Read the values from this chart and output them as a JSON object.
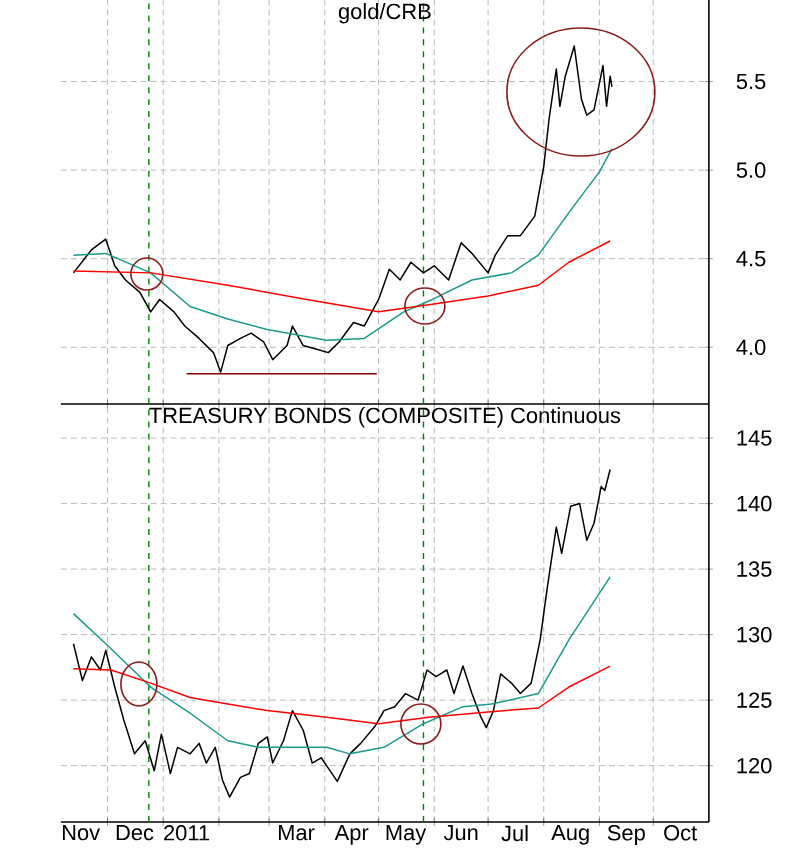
{
  "chart_data": [
    {
      "type": "line",
      "title": "gold/CRB",
      "xlim": [
        "2010-11-05",
        "2011-11-01"
      ],
      "ylim": [
        3.68,
        5.96
      ],
      "xticks": [
        {
          "value": "2010-12-01",
          "label": null
        },
        {
          "value": "2011-01-01",
          "label": null
        },
        {
          "value": "2011-02-01",
          "label": null
        },
        {
          "value": "2011-03-01",
          "label": null
        },
        {
          "value": "2011-04-01",
          "label": null
        },
        {
          "value": "2011-05-01",
          "label": null
        },
        {
          "value": "2011-06-01",
          "label": null
        },
        {
          "value": "2011-07-01",
          "label": null
        },
        {
          "value": "2011-08-01",
          "label": null
        },
        {
          "value": "2011-09-01",
          "label": null
        },
        {
          "value": "2011-10-01",
          "label": null
        }
      ],
      "yticks": [
        {
          "value": 4.0,
          "label": "4.0"
        },
        {
          "value": 4.5,
          "label": "4.5"
        },
        {
          "value": 5.0,
          "label": "5.0"
        },
        {
          "value": 5.5,
          "label": "5.5"
        }
      ],
      "tick_labels": "y",
      "grid": true,
      "marker": "none",
      "ref_lines": [
        {
          "axis": "x",
          "value": "2010-12-24",
          "color": "#008000",
          "line_style": "dashed"
        },
        {
          "axis": "x",
          "value": "2011-05-26",
          "color": "#008000",
          "line_style": "dashed"
        }
      ],
      "series": [
        {
          "color": "#000000",
          "x": [
            "2010-11-12",
            "2010-11-22",
            "2010-11-30",
            "2010-12-05",
            "2010-12-11",
            "2010-12-19",
            "2010-12-25",
            "2010-12-30",
            "2011-01-07",
            "2011-01-13",
            "2011-01-21",
            "2011-01-29",
            "2011-02-02",
            "2011-02-06",
            "2011-02-13",
            "2011-02-19",
            "2011-02-26",
            "2011-03-03",
            "2011-03-11",
            "2011-03-14",
            "2011-03-20",
            "2011-03-27",
            "2011-04-03",
            "2011-04-09",
            "2011-04-17",
            "2011-04-23",
            "2011-05-01",
            "2011-05-07",
            "2011-05-13",
            "2011-05-19",
            "2011-05-26",
            "2011-06-01",
            "2011-06-09",
            "2011-06-16",
            "2011-06-22",
            "2011-07-01",
            "2011-07-05",
            "2011-07-12",
            "2011-07-19",
            "2011-07-27",
            "2011-08-01",
            "2011-08-04",
            "2011-08-08",
            "2011-08-10",
            "2011-08-13",
            "2011-08-18",
            "2011-08-22",
            "2011-08-25",
            "2011-08-29",
            "2011-09-03",
            "2011-09-05",
            "2011-09-07",
            "2011-09-08"
          ],
          "values": [
            4.42,
            4.55,
            4.61,
            4.46,
            4.38,
            4.31,
            4.2,
            4.27,
            4.2,
            4.12,
            4.05,
            3.97,
            3.86,
            4.01,
            4.05,
            4.08,
            4.03,
            3.93,
            4.01,
            4.12,
            4.01,
            3.99,
            3.97,
            4.03,
            4.14,
            4.12,
            4.27,
            4.44,
            4.38,
            4.48,
            4.42,
            4.46,
            4.38,
            4.59,
            4.53,
            4.42,
            4.52,
            4.63,
            4.63,
            4.74,
            5.02,
            5.29,
            5.57,
            5.36,
            5.53,
            5.7,
            5.4,
            5.31,
            5.34,
            5.59,
            5.36,
            5.53,
            5.47
          ]
        },
        {
          "color": "#1a9a8a",
          "x": [
            "2010-11-12",
            "2010-11-30",
            "2010-12-25",
            "2011-01-16",
            "2011-02-06",
            "2011-02-28",
            "2011-04-02",
            "2011-04-23",
            "2011-05-15",
            "2011-05-31",
            "2011-06-22",
            "2011-07-14",
            "2011-07-29",
            "2011-08-15",
            "2011-09-01",
            "2011-09-08"
          ],
          "values": [
            4.52,
            4.53,
            4.42,
            4.23,
            4.16,
            4.1,
            4.04,
            4.05,
            4.2,
            4.27,
            4.38,
            4.42,
            4.52,
            4.76,
            4.99,
            5.12
          ]
        },
        {
          "color": "#ff0000",
          "x": [
            "2010-11-12",
            "2010-12-25",
            "2011-02-06",
            "2011-03-22",
            "2011-05-01",
            "2011-05-29",
            "2011-07-01",
            "2011-07-29",
            "2011-08-15",
            "2011-09-07"
          ],
          "values": [
            4.43,
            4.42,
            4.35,
            4.27,
            4.2,
            4.24,
            4.29,
            4.35,
            4.48,
            4.6
          ]
        },
        {
          "color": "#8b0000",
          "x": [
            "2011-01-14",
            "2011-04-30"
          ],
          "values": [
            3.85,
            3.85
          ]
        }
      ]
    },
    {
      "type": "line",
      "title": "TREASURY BONDS (COMPOSITE) Continuous",
      "xlim": [
        "2010-11-05",
        "2011-11-01"
      ],
      "ylim": [
        115.7,
        147.6
      ],
      "xticks": [
        {
          "value": "2010-11-16",
          "label": "Nov"
        },
        {
          "value": "2010-12-01",
          "label": null
        },
        {
          "value": "2010-12-16",
          "label": "Dec"
        },
        {
          "value": "2011-01-01",
          "label": null
        },
        {
          "value": "2011-01-14",
          "label": "2011"
        },
        {
          "value": "2011-02-01",
          "label": null
        },
        {
          "value": "2011-03-01",
          "label": null
        },
        {
          "value": "2011-03-16",
          "label": "Mar"
        },
        {
          "value": "2011-04-01",
          "label": null
        },
        {
          "value": "2011-04-16",
          "label": "Apr"
        },
        {
          "value": "2011-05-01",
          "label": null
        },
        {
          "value": "2011-05-16",
          "label": "May"
        },
        {
          "value": "2011-06-01",
          "label": null
        },
        {
          "value": "2011-06-16",
          "label": "Jun"
        },
        {
          "value": "2011-07-01",
          "label": null
        },
        {
          "value": "2011-07-16",
          "label": "Jul"
        },
        {
          "value": "2011-08-01",
          "label": null
        },
        {
          "value": "2011-08-16",
          "label": "Aug"
        },
        {
          "value": "2011-09-01",
          "label": null
        },
        {
          "value": "2011-09-16",
          "label": "Sep"
        },
        {
          "value": "2011-10-01",
          "label": null
        },
        {
          "value": "2011-10-16",
          "label": "Oct"
        }
      ],
      "yticks": [
        120,
        125,
        130,
        135,
        140,
        145
      ],
      "grid": true,
      "marker": "none",
      "ref_lines": [
        {
          "axis": "x",
          "value": "2010-12-24",
          "color": "#008000",
          "line_style": "dashed"
        },
        {
          "axis": "x",
          "value": "2011-05-26",
          "color": "#008000",
          "line_style": "dashed"
        }
      ],
      "series": [
        {
          "color": "#000000",
          "x": [
            "2010-11-12",
            "2010-11-17",
            "2010-11-22",
            "2010-11-27",
            "2010-11-30",
            "2010-12-05",
            "2010-12-10",
            "2010-12-16",
            "2010-12-22",
            "2010-12-27",
            "2010-12-31",
            "2011-01-05",
            "2011-01-09",
            "2011-01-16",
            "2011-01-21",
            "2011-01-25",
            "2011-01-30",
            "2011-02-03",
            "2011-02-07",
            "2011-02-13",
            "2011-02-18",
            "2011-02-23",
            "2011-02-28",
            "2011-03-03",
            "2011-03-09",
            "2011-03-14",
            "2011-03-20",
            "2011-03-25",
            "2011-03-30",
            "2011-04-08",
            "2011-04-15",
            "2011-04-21",
            "2011-04-29",
            "2011-05-04",
            "2011-05-10",
            "2011-05-16",
            "2011-05-23",
            "2011-05-28",
            "2011-06-02",
            "2011-06-08",
            "2011-06-12",
            "2011-06-17",
            "2011-06-22",
            "2011-06-27",
            "2011-06-30",
            "2011-07-04",
            "2011-07-08",
            "2011-07-14",
            "2011-07-19",
            "2011-07-25",
            "2011-07-30",
            "2011-08-03",
            "2011-08-08",
            "2011-08-11",
            "2011-08-16",
            "2011-08-21",
            "2011-08-25",
            "2011-08-29",
            "2011-09-02",
            "2011-09-04",
            "2011-09-07"
          ],
          "values": [
            129.3,
            126.5,
            128.3,
            127.3,
            128.8,
            126.0,
            123.5,
            120.9,
            121.9,
            119.6,
            122.4,
            119.4,
            121.4,
            120.9,
            121.7,
            120.2,
            121.4,
            118.9,
            117.6,
            119.1,
            119.4,
            121.7,
            122.2,
            120.2,
            121.9,
            124.2,
            122.7,
            120.2,
            120.6,
            118.8,
            120.9,
            121.7,
            123.0,
            124.2,
            124.5,
            125.5,
            125.0,
            127.3,
            126.8,
            127.3,
            125.5,
            127.6,
            125.5,
            123.7,
            122.9,
            124.2,
            127.0,
            126.3,
            125.5,
            126.3,
            129.6,
            133.6,
            138.2,
            136.2,
            139.8,
            140.0,
            137.2,
            138.5,
            141.3,
            141.0,
            142.6
          ]
        },
        {
          "color": "#1a9a8a",
          "x": [
            "2010-11-12",
            "2010-11-30",
            "2010-12-25",
            "2011-01-16",
            "2011-02-06",
            "2011-02-23",
            "2011-03-11",
            "2011-04-02",
            "2011-04-15",
            "2011-05-04",
            "2011-05-26",
            "2011-06-17",
            "2011-07-03",
            "2011-07-29",
            "2011-08-15",
            "2011-09-07"
          ],
          "values": [
            131.6,
            129.3,
            126.0,
            124.0,
            121.9,
            121.4,
            121.4,
            121.4,
            120.9,
            121.4,
            123.2,
            124.5,
            124.7,
            125.5,
            129.6,
            134.4
          ]
        },
        {
          "color": "#ff0000",
          "x": [
            "2010-11-12",
            "2010-12-03",
            "2010-12-25",
            "2011-01-16",
            "2011-02-06",
            "2011-02-28",
            "2011-04-02",
            "2011-05-01",
            "2011-05-29",
            "2011-07-01",
            "2011-07-29",
            "2011-08-15",
            "2011-09-07"
          ],
          "values": [
            127.4,
            127.3,
            126.3,
            125.2,
            124.7,
            124.2,
            123.7,
            123.2,
            123.7,
            124.1,
            124.4,
            126.0,
            127.6
          ]
        }
      ]
    }
  ]
}
